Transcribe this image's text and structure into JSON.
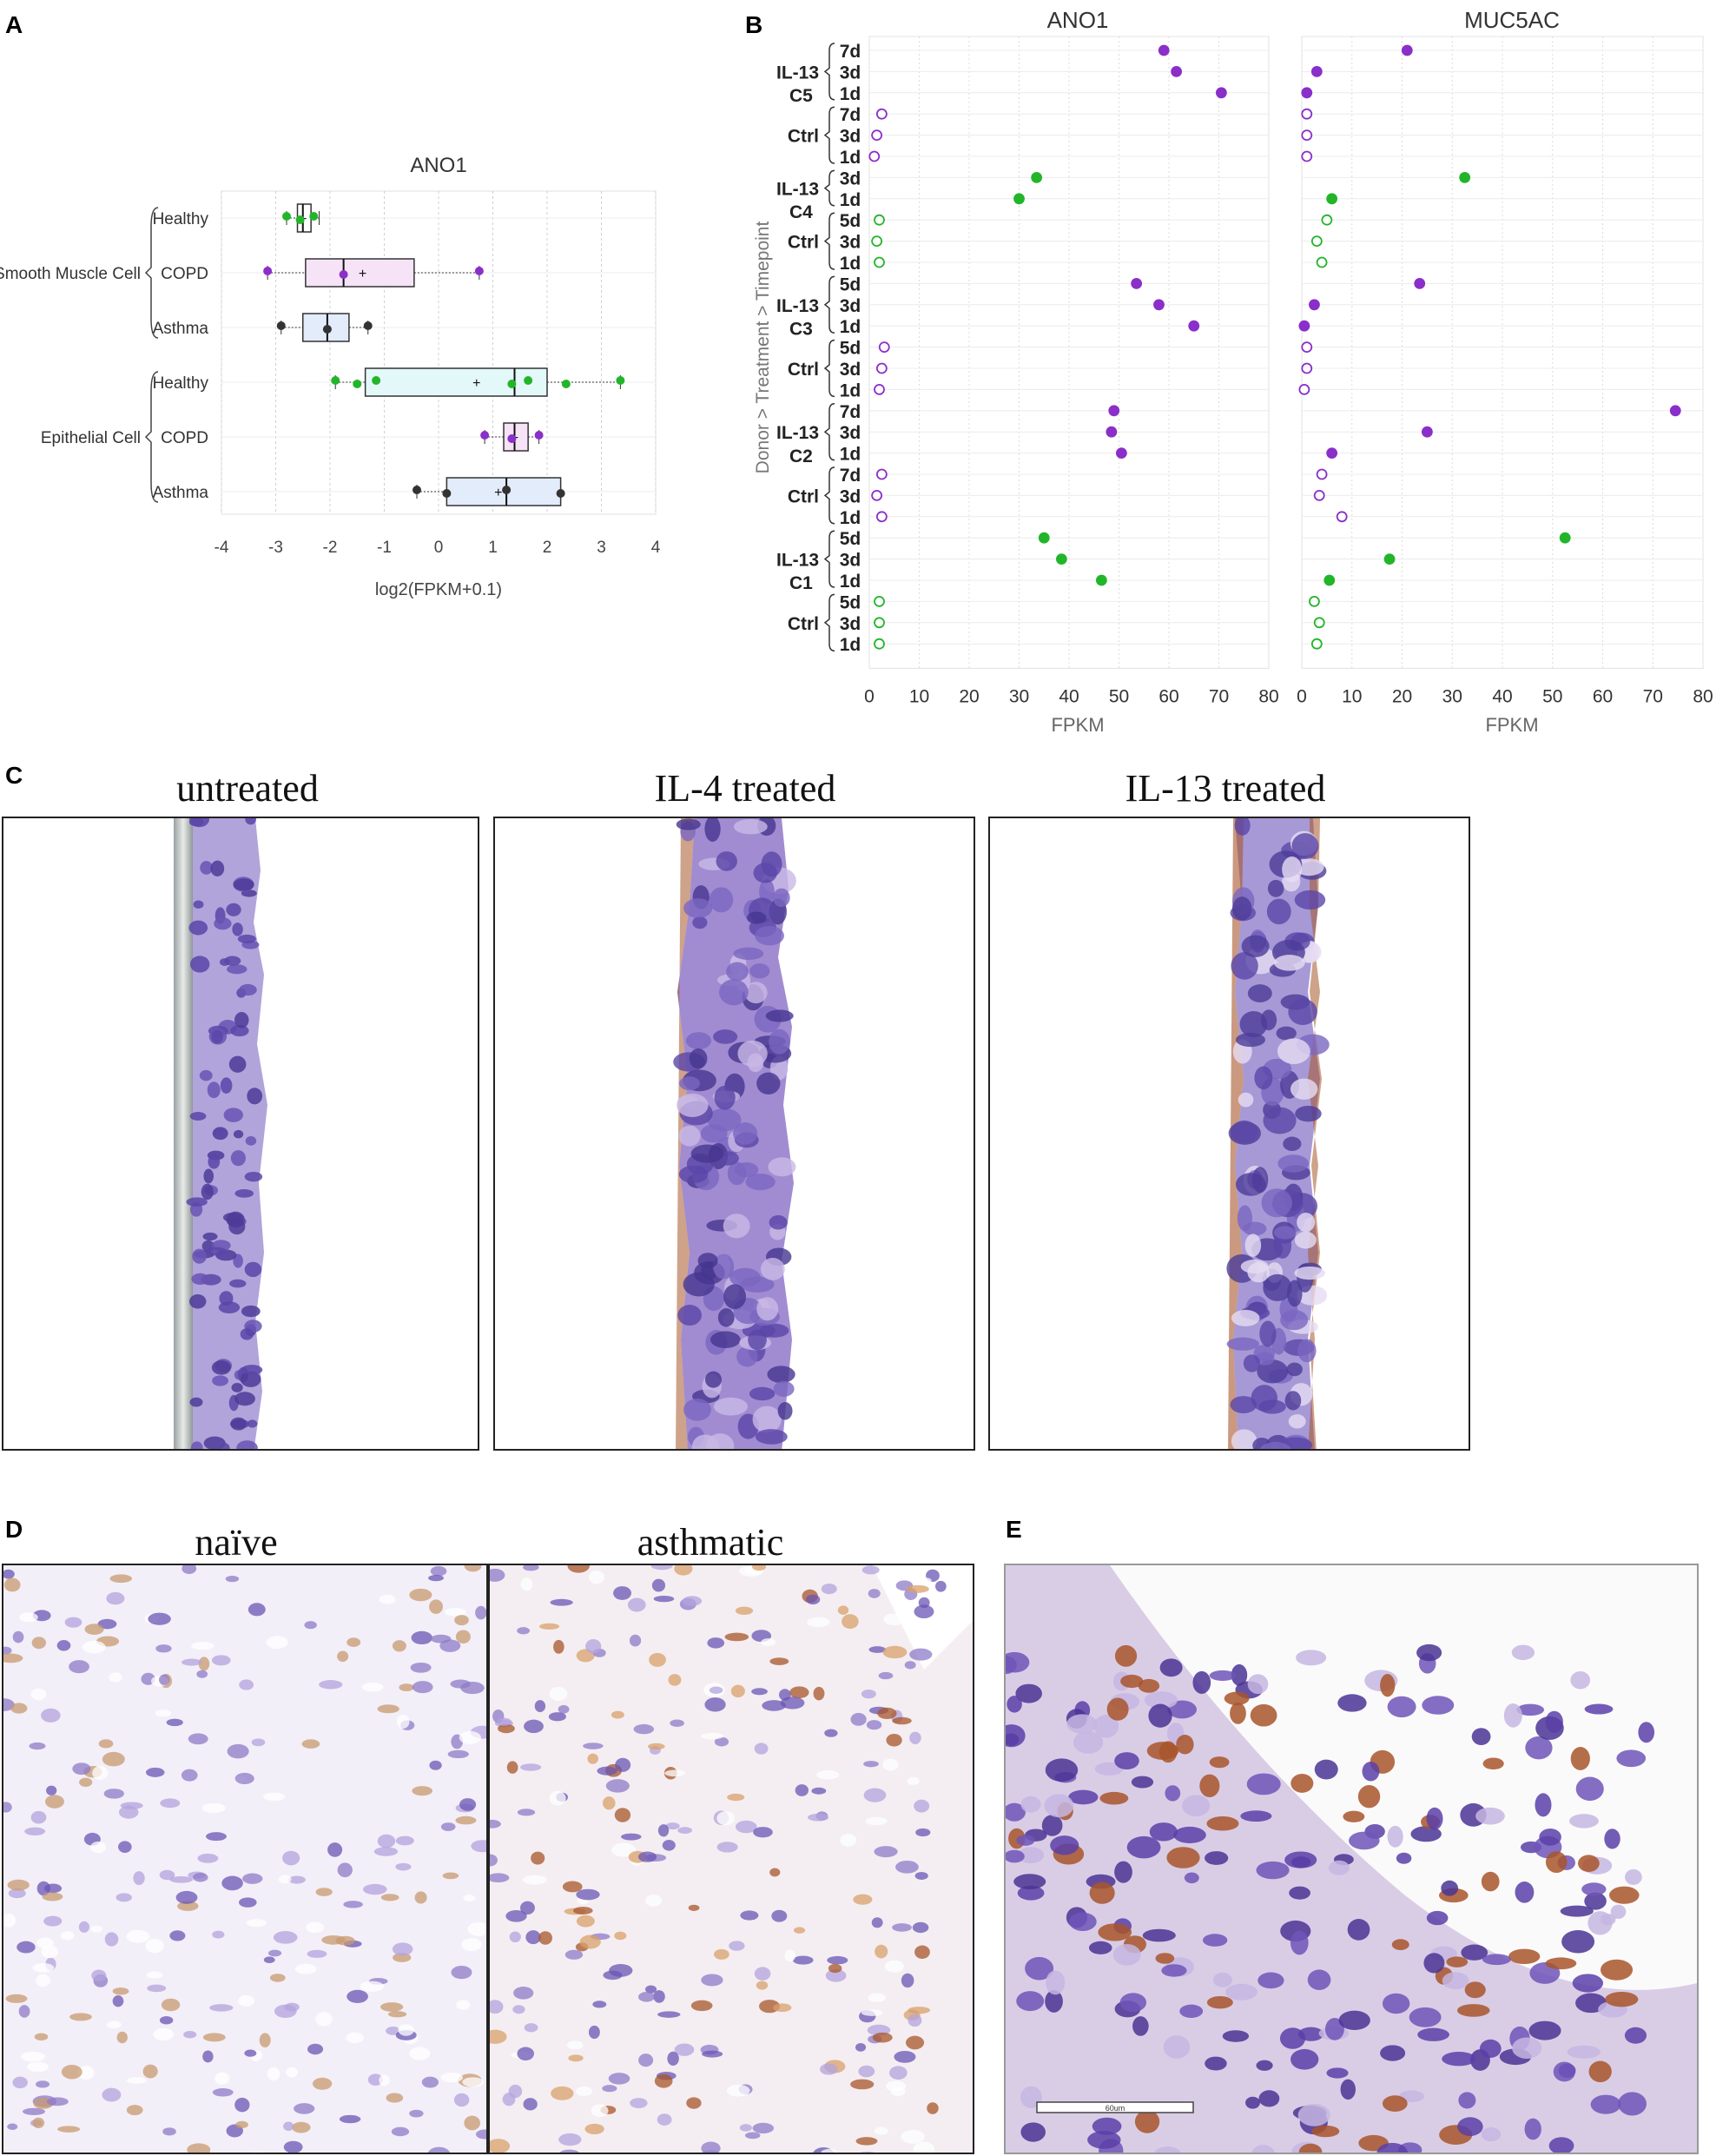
{
  "panels": {
    "a": "A",
    "b": "B",
    "c": "C",
    "d": "D",
    "e": "E"
  },
  "panel_c_titles": [
    "untreated",
    "IL-4 treated",
    "IL-13 treated"
  ],
  "panel_d_titles": [
    "naïve",
    "asthmatic"
  ],
  "panel_e_scale_label": "60um",
  "colors": {
    "smc_copd_box": "#f6e3f8",
    "epi_healthy_box": "#e3f8f8",
    "epi_copd_box": "#f6e3f8",
    "epi_asthma_box": "#e2ecfa",
    "purple_point": "#8a2fc9",
    "green_point": "#22b52a",
    "grid": "#dddddd",
    "stain_purple": "#8b78c6",
    "stain_brown": "#a8552a"
  },
  "chart_data": [
    {
      "type": "box",
      "title": "ANO1",
      "xlabel": "log2(FPKM+0.1)",
      "xlim": [
        -4,
        4
      ],
      "xticks": [
        -4,
        -3,
        -2,
        -1,
        0,
        1,
        2,
        3,
        4
      ],
      "groups": [
        {
          "name": "Smooth Muscle Cell",
          "rows": [
            {
              "label": "Healthy",
              "q1": -2.6,
              "median": -2.5,
              "q3": -2.35,
              "whisker_low": -2.8,
              "whisker_high": -2.2,
              "mean": -2.5,
              "points": [
                -2.8,
                -2.55,
                -2.3
              ],
              "point_color": "green"
            },
            {
              "label": "COPD",
              "q1": -2.45,
              "median": -1.75,
              "q3": -0.45,
              "whisker_low": -3.15,
              "whisker_high": 0.75,
              "mean": -1.4,
              "points": [
                -3.15,
                -1.75,
                0.75
              ],
              "point_color": "purple"
            },
            {
              "label": "Asthma",
              "q1": -2.5,
              "median": -2.05,
              "q3": -1.65,
              "whisker_low": -2.9,
              "whisker_high": -1.3,
              "mean": -2.05,
              "points": [
                -2.9,
                -2.05,
                -1.3
              ],
              "point_color": "dark"
            }
          ]
        },
        {
          "name": "Epithelial Cell",
          "rows": [
            {
              "label": "Healthy",
              "q1": -1.35,
              "median": 1.4,
              "q3": 2.0,
              "whisker_low": -1.9,
              "whisker_high": 3.35,
              "mean": 0.7,
              "points": [
                -1.9,
                -1.5,
                -1.15,
                1.35,
                1.65,
                2.35,
                3.35
              ],
              "point_color": "green"
            },
            {
              "label": "COPD",
              "q1": 1.2,
              "median": 1.4,
              "q3": 1.65,
              "whisker_low": 0.85,
              "whisker_high": 1.85,
              "mean": 1.4,
              "points": [
                0.85,
                1.35,
                1.85
              ],
              "point_color": "purple"
            },
            {
              "label": "Asthma",
              "q1": 0.15,
              "median": 1.25,
              "q3": 2.25,
              "whisker_low": -0.4,
              "whisker_high": 2.25,
              "mean": 1.1,
              "points": [
                -0.4,
                0.15,
                1.25,
                2.25
              ],
              "point_color": "dark"
            }
          ]
        }
      ]
    },
    {
      "type": "dot",
      "ylabel": "Donor > Treatment > Timepoint",
      "xlabel": "FPKM",
      "xlim": [
        0,
        80
      ],
      "xticks": [
        0,
        10,
        20,
        30,
        40,
        50,
        60,
        70,
        80
      ],
      "facets": [
        "ANO1",
        "MUC5AC"
      ],
      "rows": [
        {
          "donor": "C5",
          "treatment": "IL-13",
          "time": "7d",
          "fill": true,
          "color": "purple",
          "values": [
            59,
            21
          ]
        },
        {
          "donor": "C5",
          "treatment": "IL-13",
          "time": "3d",
          "fill": true,
          "color": "purple",
          "values": [
            61.5,
            3
          ]
        },
        {
          "donor": "C5",
          "treatment": "IL-13",
          "time": "1d",
          "fill": true,
          "color": "purple",
          "values": [
            70.5,
            1
          ]
        },
        {
          "donor": "C5",
          "treatment": "Ctrl",
          "time": "7d",
          "fill": false,
          "color": "purple",
          "values": [
            2.5,
            1
          ]
        },
        {
          "donor": "C5",
          "treatment": "Ctrl",
          "time": "3d",
          "fill": false,
          "color": "purple",
          "values": [
            1.5,
            1
          ]
        },
        {
          "donor": "C5",
          "treatment": "Ctrl",
          "time": "1d",
          "fill": false,
          "color": "purple",
          "values": [
            1,
            1
          ]
        },
        {
          "donor": "C4",
          "treatment": "IL-13",
          "time": "3d",
          "fill": true,
          "color": "green",
          "values": [
            33.5,
            32.5
          ]
        },
        {
          "donor": "C4",
          "treatment": "IL-13",
          "time": "1d",
          "fill": true,
          "color": "green",
          "values": [
            30,
            6
          ]
        },
        {
          "donor": "C4",
          "treatment": "Ctrl",
          "time": "5d",
          "fill": false,
          "color": "green",
          "values": [
            2,
            5
          ]
        },
        {
          "donor": "C4",
          "treatment": "Ctrl",
          "time": "3d",
          "fill": false,
          "color": "green",
          "values": [
            1.5,
            3
          ]
        },
        {
          "donor": "C4",
          "treatment": "Ctrl",
          "time": "1d",
          "fill": false,
          "color": "green",
          "values": [
            2,
            4
          ]
        },
        {
          "donor": "C3",
          "treatment": "IL-13",
          "time": "5d",
          "fill": true,
          "color": "purple",
          "values": [
            53.5,
            23.5
          ]
        },
        {
          "donor": "C3",
          "treatment": "IL-13",
          "time": "3d",
          "fill": true,
          "color": "purple",
          "values": [
            58,
            2.5
          ]
        },
        {
          "donor": "C3",
          "treatment": "IL-13",
          "time": "1d",
          "fill": true,
          "color": "purple",
          "values": [
            65,
            0.5
          ]
        },
        {
          "donor": "C3",
          "treatment": "Ctrl",
          "time": "5d",
          "fill": false,
          "color": "purple",
          "values": [
            3,
            1
          ]
        },
        {
          "donor": "C3",
          "treatment": "Ctrl",
          "time": "3d",
          "fill": false,
          "color": "purple",
          "values": [
            2.5,
            1
          ]
        },
        {
          "donor": "C3",
          "treatment": "Ctrl",
          "time": "1d",
          "fill": false,
          "color": "purple",
          "values": [
            2,
            0.5
          ]
        },
        {
          "donor": "C2",
          "treatment": "IL-13",
          "time": "7d",
          "fill": true,
          "color": "purple",
          "values": [
            49,
            74.5
          ]
        },
        {
          "donor": "C2",
          "treatment": "IL-13",
          "time": "3d",
          "fill": true,
          "color": "purple",
          "values": [
            48.5,
            25
          ]
        },
        {
          "donor": "C2",
          "treatment": "IL-13",
          "time": "1d",
          "fill": true,
          "color": "purple",
          "values": [
            50.5,
            6
          ]
        },
        {
          "donor": "C2",
          "treatment": "Ctrl",
          "time": "7d",
          "fill": false,
          "color": "purple",
          "values": [
            2.5,
            4
          ]
        },
        {
          "donor": "C2",
          "treatment": "Ctrl",
          "time": "3d",
          "fill": false,
          "color": "purple",
          "values": [
            1.5,
            3.5
          ]
        },
        {
          "donor": "C2",
          "treatment": "Ctrl",
          "time": "1d",
          "fill": false,
          "color": "purple",
          "values": [
            2.5,
            8
          ]
        },
        {
          "donor": "C1",
          "treatment": "IL-13",
          "time": "5d",
          "fill": true,
          "color": "green",
          "values": [
            35,
            52.5
          ]
        },
        {
          "donor": "C1",
          "treatment": "IL-13",
          "time": "3d",
          "fill": true,
          "color": "green",
          "values": [
            38.5,
            17.5
          ]
        },
        {
          "donor": "C1",
          "treatment": "IL-13",
          "time": "1d",
          "fill": true,
          "color": "green",
          "values": [
            46.5,
            5.5
          ]
        },
        {
          "donor": "C1",
          "treatment": "Ctrl",
          "time": "5d",
          "fill": false,
          "color": "green",
          "values": [
            2,
            2.5
          ]
        },
        {
          "donor": "C1",
          "treatment": "Ctrl",
          "time": "3d",
          "fill": false,
          "color": "green",
          "values": [
            2,
            3.5
          ]
        },
        {
          "donor": "C1",
          "treatment": "Ctrl",
          "time": "1d",
          "fill": false,
          "color": "green",
          "values": [
            2,
            3
          ]
        }
      ]
    }
  ]
}
